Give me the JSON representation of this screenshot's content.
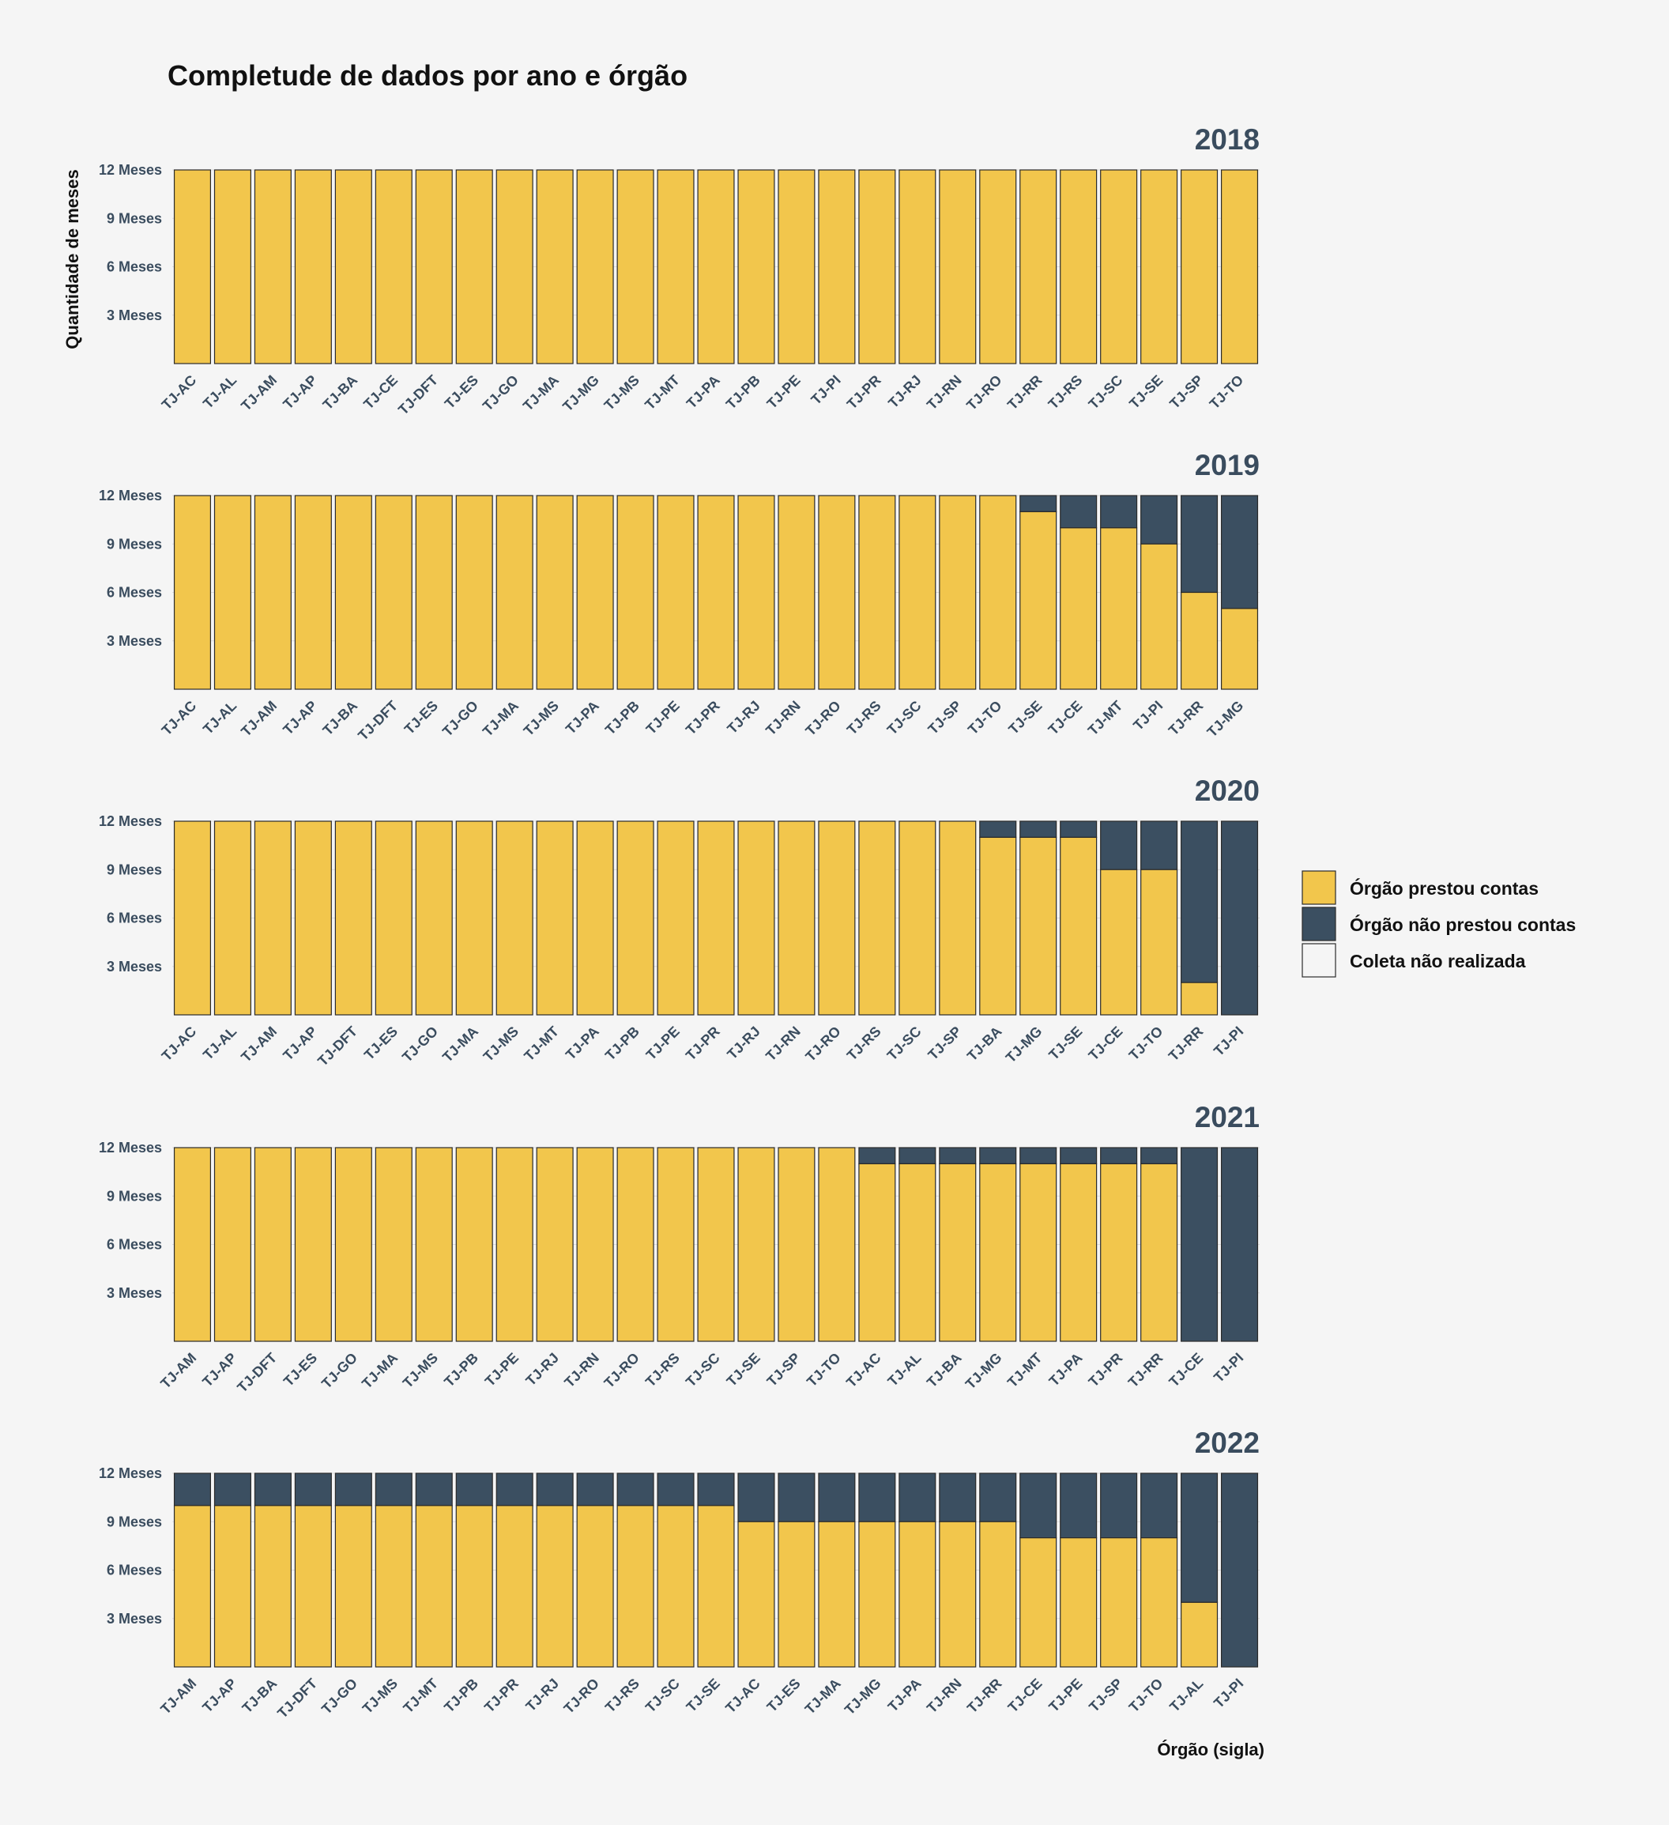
{
  "colors": {
    "background": "#f5f5f5",
    "prestou": "#f2c64c",
    "nao_prestou": "#3b4f61",
    "nao_realizada": "#f5f5f5",
    "bar_stroke": "#2b2b2b",
    "grid": "#dddddd"
  },
  "chart_data": {
    "type": "bar",
    "stacked": true,
    "title": "Completude de dados por ano e órgão",
    "xlabel": "Órgão (sigla)",
    "ylabel": "Quantidade de meses",
    "ylim": [
      0,
      12
    ],
    "y_ticks": [
      {
        "value": 3,
        "label": "3 Meses"
      },
      {
        "value": 6,
        "label": "6 Meses"
      },
      {
        "value": 9,
        "label": "9 Meses"
      },
      {
        "value": 12,
        "label": "12 Meses"
      }
    ],
    "legend": {
      "placement": "right",
      "items": [
        {
          "key": "prestou",
          "label": "Órgão prestou contas"
        },
        {
          "key": "nao_prestou",
          "label": "Órgão não prestou contas"
        },
        {
          "key": "nao_realizada",
          "label": "Coleta não realizada"
        }
      ]
    },
    "panels": [
      {
        "year": "2018",
        "categories": [
          "TJ-AC",
          "TJ-AL",
          "TJ-AM",
          "TJ-AP",
          "TJ-BA",
          "TJ-CE",
          "TJ-DFT",
          "TJ-ES",
          "TJ-GO",
          "TJ-MA",
          "TJ-MG",
          "TJ-MS",
          "TJ-MT",
          "TJ-PA",
          "TJ-PB",
          "TJ-PE",
          "TJ-PI",
          "TJ-PR",
          "TJ-RJ",
          "TJ-RN",
          "TJ-RO",
          "TJ-RR",
          "TJ-RS",
          "TJ-SC",
          "TJ-SE",
          "TJ-SP",
          "TJ-TO"
        ],
        "prestou": [
          12,
          12,
          12,
          12,
          12,
          12,
          12,
          12,
          12,
          12,
          12,
          12,
          12,
          12,
          12,
          12,
          12,
          12,
          12,
          12,
          12,
          12,
          12,
          12,
          12,
          12,
          12
        ],
        "nao_prestou": [
          0,
          0,
          0,
          0,
          0,
          0,
          0,
          0,
          0,
          0,
          0,
          0,
          0,
          0,
          0,
          0,
          0,
          0,
          0,
          0,
          0,
          0,
          0,
          0,
          0,
          0,
          0
        ]
      },
      {
        "year": "2019",
        "categories": [
          "TJ-AC",
          "TJ-AL",
          "TJ-AM",
          "TJ-AP",
          "TJ-BA",
          "TJ-DFT",
          "TJ-ES",
          "TJ-GO",
          "TJ-MA",
          "TJ-MS",
          "TJ-PA",
          "TJ-PB",
          "TJ-PE",
          "TJ-PR",
          "TJ-RJ",
          "TJ-RN",
          "TJ-RO",
          "TJ-RS",
          "TJ-SC",
          "TJ-SP",
          "TJ-TO",
          "TJ-SE",
          "TJ-CE",
          "TJ-MT",
          "TJ-PI",
          "TJ-RR",
          "TJ-MG"
        ],
        "prestou": [
          12,
          12,
          12,
          12,
          12,
          12,
          12,
          12,
          12,
          12,
          12,
          12,
          12,
          12,
          12,
          12,
          12,
          12,
          12,
          12,
          12,
          11,
          10,
          10,
          9,
          6,
          5
        ],
        "nao_prestou": [
          0,
          0,
          0,
          0,
          0,
          0,
          0,
          0,
          0,
          0,
          0,
          0,
          0,
          0,
          0,
          0,
          0,
          0,
          0,
          0,
          0,
          1,
          2,
          2,
          3,
          6,
          7
        ]
      },
      {
        "year": "2020",
        "categories": [
          "TJ-AC",
          "TJ-AL",
          "TJ-AM",
          "TJ-AP",
          "TJ-DFT",
          "TJ-ES",
          "TJ-GO",
          "TJ-MA",
          "TJ-MS",
          "TJ-MT",
          "TJ-PA",
          "TJ-PB",
          "TJ-PE",
          "TJ-PR",
          "TJ-RJ",
          "TJ-RN",
          "TJ-RO",
          "TJ-RS",
          "TJ-SC",
          "TJ-SP",
          "TJ-BA",
          "TJ-MG",
          "TJ-SE",
          "TJ-CE",
          "TJ-TO",
          "TJ-RR",
          "TJ-PI"
        ],
        "prestou": [
          12,
          12,
          12,
          12,
          12,
          12,
          12,
          12,
          12,
          12,
          12,
          12,
          12,
          12,
          12,
          12,
          12,
          12,
          12,
          12,
          11,
          11,
          11,
          9,
          9,
          2,
          0
        ],
        "nao_prestou": [
          0,
          0,
          0,
          0,
          0,
          0,
          0,
          0,
          0,
          0,
          0,
          0,
          0,
          0,
          0,
          0,
          0,
          0,
          0,
          0,
          1,
          1,
          1,
          3,
          3,
          10,
          12
        ]
      },
      {
        "year": "2021",
        "categories": [
          "TJ-AM",
          "TJ-AP",
          "TJ-DFT",
          "TJ-ES",
          "TJ-GO",
          "TJ-MA",
          "TJ-MS",
          "TJ-PB",
          "TJ-PE",
          "TJ-RJ",
          "TJ-RN",
          "TJ-RO",
          "TJ-RS",
          "TJ-SC",
          "TJ-SE",
          "TJ-SP",
          "TJ-TO",
          "TJ-AC",
          "TJ-AL",
          "TJ-BA",
          "TJ-MG",
          "TJ-MT",
          "TJ-PA",
          "TJ-PR",
          "TJ-RR",
          "TJ-CE",
          "TJ-PI"
        ],
        "prestou": [
          12,
          12,
          12,
          12,
          12,
          12,
          12,
          12,
          12,
          12,
          12,
          12,
          12,
          12,
          12,
          12,
          12,
          11,
          11,
          11,
          11,
          11,
          11,
          11,
          11,
          0,
          0
        ],
        "nao_prestou": [
          0,
          0,
          0,
          0,
          0,
          0,
          0,
          0,
          0,
          0,
          0,
          0,
          0,
          0,
          0,
          0,
          0,
          1,
          1,
          1,
          1,
          1,
          1,
          1,
          1,
          12,
          12
        ]
      },
      {
        "year": "2022",
        "categories": [
          "TJ-AM",
          "TJ-AP",
          "TJ-BA",
          "TJ-DFT",
          "TJ-GO",
          "TJ-MS",
          "TJ-MT",
          "TJ-PB",
          "TJ-PR",
          "TJ-RJ",
          "TJ-RO",
          "TJ-RS",
          "TJ-SC",
          "TJ-SE",
          "TJ-AC",
          "TJ-ES",
          "TJ-MA",
          "TJ-MG",
          "TJ-PA",
          "TJ-RN",
          "TJ-RR",
          "TJ-CE",
          "TJ-PE",
          "TJ-SP",
          "TJ-TO",
          "TJ-AL",
          "TJ-PI"
        ],
        "prestou": [
          10,
          10,
          10,
          10,
          10,
          10,
          10,
          10,
          10,
          10,
          10,
          10,
          10,
          10,
          9,
          9,
          9,
          9,
          9,
          9,
          9,
          8,
          8,
          8,
          8,
          4,
          0
        ],
        "nao_prestou": [
          2,
          2,
          2,
          2,
          2,
          2,
          2,
          2,
          2,
          2,
          2,
          2,
          2,
          2,
          3,
          3,
          3,
          3,
          3,
          3,
          3,
          4,
          4,
          4,
          4,
          8,
          12
        ]
      }
    ]
  }
}
